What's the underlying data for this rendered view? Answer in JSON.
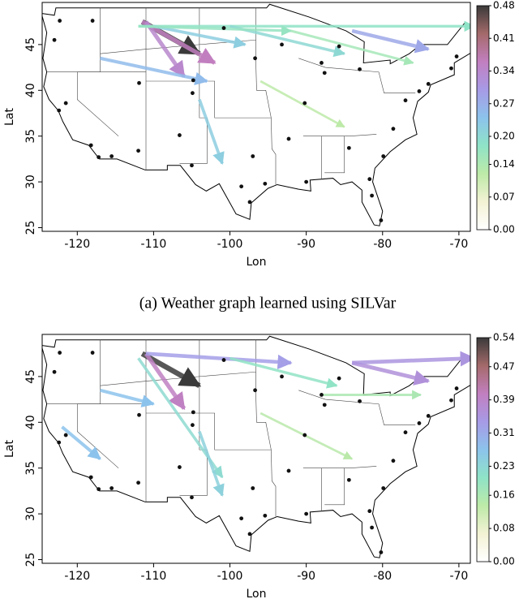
{
  "chart_data": [
    {
      "type": "network-map",
      "caption": "(a) Weather graph learned using SILVar",
      "xlabel": "Lon",
      "ylabel": "Lat",
      "xlim": [
        -124.6,
        -68.5
      ],
      "ylim": [
        24.6,
        49.6
      ],
      "xticks": [
        -120,
        -110,
        -100,
        -90,
        -80,
        -70
      ],
      "yticks": [
        25,
        30,
        35,
        40,
        45
      ],
      "colormap": [
        "#ffffff",
        "#f3f2d4",
        "#bdeaa8",
        "#8fe3c7",
        "#8cc3ec",
        "#a79ae6",
        "#c27fc0",
        "#a46a6a",
        "#3a3a3a"
      ],
      "colorbar": {
        "lim": [
          0,
          0.48
        ],
        "ticks": [
          {
            "value": 0,
            "label": "0.00"
          },
          0.07,
          0.14,
          {
            "value": 0.2,
            "label": "0.20"
          },
          0.27,
          0.34,
          0.41,
          0.48
        ]
      },
      "edges": {
        "lon0": [
          -111.5,
          -111.5,
          -111,
          -84,
          -117,
          -112,
          -100,
          -110,
          -104,
          -112,
          -96,
          -92
        ],
        "lat0": [
          47.5,
          47.5,
          47.5,
          46.5,
          43.5,
          47,
          47,
          47,
          39,
          47,
          41,
          46.5
        ],
        "lon1": [
          -104,
          -102,
          -106,
          -74,
          -103,
          -68,
          -85,
          -98,
          -101,
          -92,
          -85,
          -76
        ],
        "lat1": [
          44,
          43,
          41.5,
          44.5,
          41,
          47,
          44,
          45,
          32,
          46.5,
          36,
          43
        ],
        "weight": [
          0.48,
          0.36,
          0.34,
          0.28,
          0.25,
          0.18,
          0.2,
          0.22,
          0.22,
          0.17,
          0.12,
          0.15
        ]
      },
      "stations": {
        "lon": [
          -122.3,
          -123,
          -118,
          -122.4,
          -121.5,
          -118.2,
          -117.2,
          -115.5,
          -112,
          -111.9,
          -106.6,
          -104.9,
          -105,
          -100.8,
          -98.5,
          -97.4,
          -95.4,
          -97,
          -90.2,
          -87.6,
          -84.4,
          -81.7,
          -80.2,
          -81.4,
          -77,
          -74,
          -71,
          -70.3,
          -68,
          -85.7,
          -93.2,
          -96.7,
          -88,
          -75.2,
          -78.6,
          -90,
          -92.3,
          -83,
          -79.9,
          -104.8
        ],
        "lat": [
          47.6,
          45.5,
          47.6,
          37.8,
          38.6,
          34,
          32.7,
          32.8,
          33.4,
          40.8,
          35.1,
          39.7,
          31.8,
          46.8,
          29.5,
          27.8,
          29.8,
          32.8,
          38.6,
          41.9,
          33.7,
          30.3,
          25.8,
          28.5,
          38.9,
          40.7,
          42.4,
          43.7,
          47,
          44.8,
          45,
          43.5,
          43,
          39.9,
          35.8,
          30,
          34.7,
          42.3,
          32.8,
          41.1
        ]
      }
    },
    {
      "type": "network-map",
      "xlabel": "Lon",
      "ylabel": "Lat",
      "xlim": [
        -124.6,
        -68.5
      ],
      "ylim": [
        24.6,
        49.6
      ],
      "xticks": [
        -120,
        -110,
        -100,
        -90,
        -80,
        -70
      ],
      "yticks": [
        25,
        30,
        35,
        40,
        45
      ],
      "colormap": [
        "#ffffff",
        "#f3f2d4",
        "#bdeaa8",
        "#8fe3c7",
        "#8cc3ec",
        "#a79ae6",
        "#c27fc0",
        "#a46a6a",
        "#3a3a3a"
      ],
      "colorbar": {
        "lim": [
          0,
          0.54
        ],
        "ticks": [
          {
            "value": 0,
            "label": "0.00"
          },
          0.08,
          0.16,
          0.23,
          0.31,
          0.39,
          0.47,
          0.54
        ]
      },
      "edges": {
        "lon0": [
          -111.5,
          -111,
          -84,
          -84,
          -111,
          -122,
          -117,
          -112,
          -100,
          -104,
          -96,
          -88
        ],
        "lat0": [
          47.5,
          47.5,
          46.5,
          46.5,
          47.5,
          39.5,
          43.5,
          47,
          47,
          39,
          41,
          43
        ],
        "lon1": [
          -104,
          -106,
          -74,
          -68,
          -92,
          -117,
          -110,
          -101,
          -86,
          -101,
          -84,
          -75
        ],
        "lat1": [
          44,
          41.5,
          44.5,
          47,
          46.5,
          36,
          42,
          34,
          44,
          32,
          36,
          43
        ],
        "weight": [
          0.54,
          0.4,
          0.36,
          0.35,
          0.33,
          0.27,
          0.27,
          0.22,
          0.2,
          0.24,
          0.14,
          0.16
        ]
      },
      "stations": {
        "lon": [
          -122.3,
          -123,
          -118,
          -122.4,
          -121.5,
          -118.2,
          -117.2,
          -115.5,
          -112,
          -111.9,
          -106.6,
          -104.9,
          -105,
          -100.8,
          -98.5,
          -97.4,
          -95.4,
          -97,
          -90.2,
          -87.6,
          -84.4,
          -81.7,
          -80.2,
          -81.4,
          -77,
          -74,
          -71,
          -70.3,
          -68,
          -85.7,
          -93.2,
          -96.7,
          -88,
          -75.2,
          -78.6,
          -90,
          -92.3,
          -83,
          -79.9,
          -104.8
        ],
        "lat": [
          47.6,
          45.5,
          47.6,
          37.8,
          38.6,
          34,
          32.7,
          32.8,
          33.4,
          40.8,
          35.1,
          39.7,
          31.8,
          46.8,
          29.5,
          27.8,
          29.8,
          32.8,
          38.6,
          41.9,
          33.7,
          30.3,
          25.8,
          28.5,
          38.9,
          40.7,
          42.4,
          43.7,
          47,
          44.8,
          45,
          43.5,
          43,
          39.9,
          35.8,
          30,
          34.7,
          42.3,
          32.8,
          41.1
        ]
      }
    }
  ]
}
